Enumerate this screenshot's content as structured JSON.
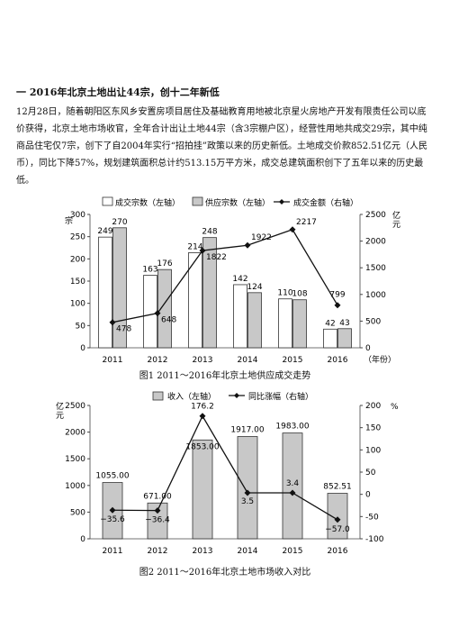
{
  "heading": "一 2016年北京土地出让44宗，创十二年新低",
  "paragraph": "12月28日，随着朝阳区东风乡安置房项目居住及基础教育用地被北京星火房地产开发有限责任公司以底价获得，北京土地市场收官，全年合计出让土地44宗（含3宗棚户区），经营性用地共成交29宗，其中纯商品住宅仅7宗，创下了自2004年实行“招拍挂”政策以来的历史新低。土地成交价款852.51亿元（人民币），同比下降57%，规划建筑面积总计约513.15万平方米，成交总建筑面积创下了五年以来的历史最低。",
  "colors": {
    "bar_white": "#ffffff",
    "bar_gray": "#c8c8c8",
    "line": "#111111",
    "axis": "#444444"
  },
  "chart_data": [
    {
      "type": "bar",
      "caption": "图1 2011～2016年北京土地供应成交走势",
      "categories": [
        "2011",
        "2012",
        "2013",
        "2014",
        "2015",
        "2016"
      ],
      "xlabel": "（年份）",
      "ylabel_left": "宗",
      "ylabel_right": "亿元",
      "ylim_left": [
        0,
        300
      ],
      "ylim_right": [
        0,
        2500
      ],
      "yticks_left": [
        0,
        50,
        100,
        150,
        200,
        250,
        300
      ],
      "yticks_right": [
        0,
        500,
        1000,
        1500,
        2000,
        2500
      ],
      "legend_position": "top",
      "series": [
        {
          "name": "成交宗数（左轴）",
          "kind": "bar",
          "axis": "left",
          "color": "#ffffff",
          "values": [
            249,
            163,
            214,
            142,
            110,
            42
          ]
        },
        {
          "name": "供应宗数（左轴）",
          "kind": "bar",
          "axis": "left",
          "color": "#c8c8c8",
          "values": [
            270,
            176,
            248,
            124,
            108,
            43
          ]
        },
        {
          "name": "成交金额（右轴）",
          "kind": "line",
          "axis": "right",
          "color": "#111111",
          "values": [
            478,
            648,
            1822,
            1922,
            2217,
            799
          ]
        }
      ]
    },
    {
      "type": "bar",
      "caption": "图2 2011～2016年北京土地市场收入对比",
      "categories": [
        "2011",
        "2012",
        "2013",
        "2014",
        "2015",
        "2016"
      ],
      "ylabel_left": "亿元",
      "ylabel_right": "%",
      "ylim_left": [
        0,
        2500
      ],
      "ylim_right": [
        -100,
        200
      ],
      "yticks_left": [
        0,
        500,
        1000,
        1500,
        2000,
        2500
      ],
      "yticks_right": [
        -100,
        -50,
        0,
        50,
        100,
        150,
        200
      ],
      "legend_position": "top",
      "series": [
        {
          "name": "收入（左轴）",
          "kind": "bar",
          "axis": "left",
          "color": "#c8c8c8",
          "values": [
            1055.0,
            671.0,
            1853.0,
            1917.0,
            1983.0,
            852.51
          ],
          "labels": [
            "1055.00",
            "671.00",
            "1853.00",
            "1917.00",
            "1983.00",
            "852.51"
          ]
        },
        {
          "name": "同比涨幅（右轴）",
          "kind": "line",
          "axis": "right",
          "color": "#111111",
          "values": [
            -35.6,
            -36.4,
            176.2,
            3.5,
            3.4,
            -57.0
          ],
          "labels": [
            "−35.6",
            "−36.4",
            "176.2",
            "3.5",
            "3.4",
            "−57.0"
          ]
        }
      ]
    }
  ]
}
